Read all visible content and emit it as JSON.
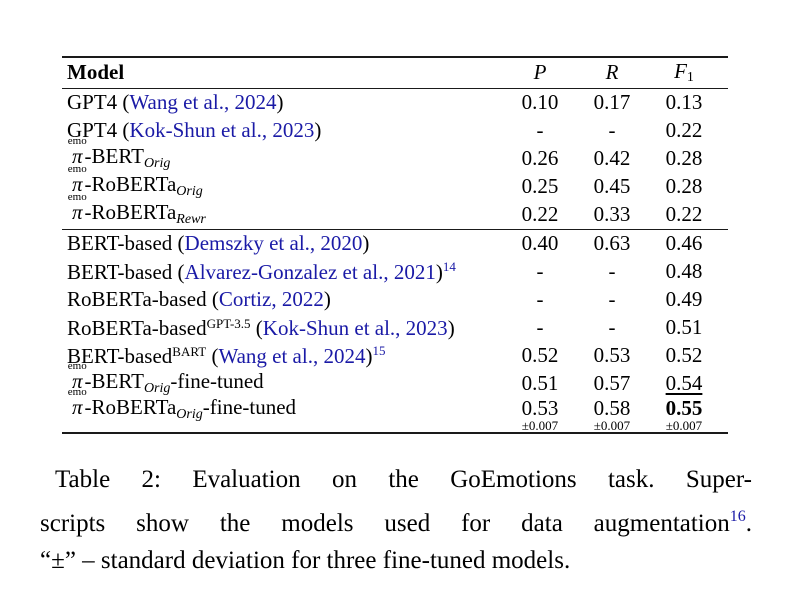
{
  "colors": {
    "text": "#000000",
    "citation_blue": "#1a1aa6",
    "background": "#ffffff"
  },
  "pi_model": {
    "top_label": "emo",
    "symbol": "π"
  },
  "table": {
    "header": {
      "model": "Model",
      "p": "P",
      "r": "R",
      "f": "F",
      "f_sub": "1"
    },
    "groups": [
      [
        {
          "model": [
            {
              "t": "text",
              "v": "GPT4 ("
            },
            {
              "t": "cite",
              "v": "Wang et al., 2024"
            },
            {
              "t": "text",
              "v": ")"
            }
          ],
          "p": {
            "v": "0.10"
          },
          "r": {
            "v": "0.17"
          },
          "f": {
            "v": "0.13"
          }
        },
        {
          "model": [
            {
              "t": "text",
              "v": "GPT4 ("
            },
            {
              "t": "cite",
              "v": "Kok-Shun et al., 2023"
            },
            {
              "t": "text",
              "v": ")"
            }
          ],
          "p": {
            "v": "-"
          },
          "r": {
            "v": "-"
          },
          "f": {
            "v": "0.22"
          }
        },
        {
          "model": [
            {
              "t": "pi"
            },
            {
              "t": "text",
              "v": "-BERT"
            },
            {
              "t": "sub",
              "v": "Orig"
            }
          ],
          "p": {
            "v": "0.26"
          },
          "r": {
            "v": "0.42"
          },
          "f": {
            "v": "0.28"
          }
        },
        {
          "model": [
            {
              "t": "pi"
            },
            {
              "t": "text",
              "v": "-RoBERTa"
            },
            {
              "t": "sub",
              "v": "Orig"
            }
          ],
          "p": {
            "v": "0.25"
          },
          "r": {
            "v": "0.45"
          },
          "f": {
            "v": "0.28"
          }
        },
        {
          "model": [
            {
              "t": "pi"
            },
            {
              "t": "text",
              "v": "-RoBERTa"
            },
            {
              "t": "sub",
              "v": "Rewr"
            }
          ],
          "p": {
            "v": "0.22"
          },
          "r": {
            "v": "0.33"
          },
          "f": {
            "v": "0.22"
          }
        }
      ],
      [
        {
          "model": [
            {
              "t": "text",
              "v": "BERT-based ("
            },
            {
              "t": "cite",
              "v": "Demszky et al., 2020"
            },
            {
              "t": "text",
              "v": ")"
            }
          ],
          "p": {
            "v": "0.40"
          },
          "r": {
            "v": "0.63"
          },
          "f": {
            "v": "0.46"
          }
        },
        {
          "model": [
            {
              "t": "text",
              "v": "BERT-based ("
            },
            {
              "t": "cite",
              "v": "Alvarez-Gonzalez et al., 2021"
            },
            {
              "t": "text",
              "v": ")"
            },
            {
              "t": "fnote",
              "v": "14"
            }
          ],
          "p": {
            "v": "-"
          },
          "r": {
            "v": "-"
          },
          "f": {
            "v": "0.48"
          }
        },
        {
          "model": [
            {
              "t": "text",
              "v": "RoBERTa-based ("
            },
            {
              "t": "cite",
              "v": "Cortiz, 2022"
            },
            {
              "t": "text",
              "v": ")"
            }
          ],
          "p": {
            "v": "-"
          },
          "r": {
            "v": "-"
          },
          "f": {
            "v": "0.49"
          }
        },
        {
          "model": [
            {
              "t": "text",
              "v": "RoBERTa-based"
            },
            {
              "t": "sup",
              "v": "GPT-3.5"
            },
            {
              "t": "text",
              "v": " ("
            },
            {
              "t": "cite",
              "v": "Kok-Shun et al., 2023"
            },
            {
              "t": "text",
              "v": ")"
            }
          ],
          "p": {
            "v": "-"
          },
          "r": {
            "v": "-"
          },
          "f": {
            "v": "0.51"
          }
        },
        {
          "model": [
            {
              "t": "text",
              "v": "BERT-based"
            },
            {
              "t": "sup",
              "v": "BART"
            },
            {
              "t": "text",
              "v": " ("
            },
            {
              "t": "cite",
              "v": "Wang et al., 2024"
            },
            {
              "t": "text",
              "v": ")"
            },
            {
              "t": "fnote",
              "v": "15"
            }
          ],
          "p": {
            "v": "0.52"
          },
          "r": {
            "v": "0.53"
          },
          "f": {
            "v": "0.52"
          }
        },
        {
          "model": [
            {
              "t": "pi"
            },
            {
              "t": "text",
              "v": "-BERT"
            },
            {
              "t": "sub",
              "v": "Orig"
            },
            {
              "t": "text",
              "v": "-fine-tuned"
            }
          ],
          "p": {
            "v": "0.51"
          },
          "r": {
            "v": "0.57"
          },
          "f": {
            "v": "0.54",
            "underline": true
          }
        },
        {
          "model": [
            {
              "t": "pi"
            },
            {
              "t": "text",
              "v": "-RoBERTa"
            },
            {
              "t": "sub",
              "v": "Orig"
            },
            {
              "t": "text",
              "v": "-fine-tuned"
            }
          ],
          "p": {
            "v": "0.53",
            "std": "±0.007"
          },
          "r": {
            "v": "0.58",
            "std": "±0.007"
          },
          "f": {
            "v": "0.55",
            "bold": true,
            "std": "±0.007"
          },
          "tall": true
        }
      ]
    ]
  },
  "caption": {
    "lines": [
      [
        {
          "t": "text",
          "v": "Table 2:  Evaluation on the GoEmotions task.  Super-"
        }
      ],
      [
        {
          "t": "text",
          "v": "scripts show the models used for data augmentation"
        },
        {
          "t": "fnote",
          "v": "16"
        },
        {
          "t": "text",
          "v": "."
        }
      ],
      [
        {
          "t": "text",
          "v": "“±” – standard deviation for three fine-tuned models."
        }
      ]
    ]
  }
}
